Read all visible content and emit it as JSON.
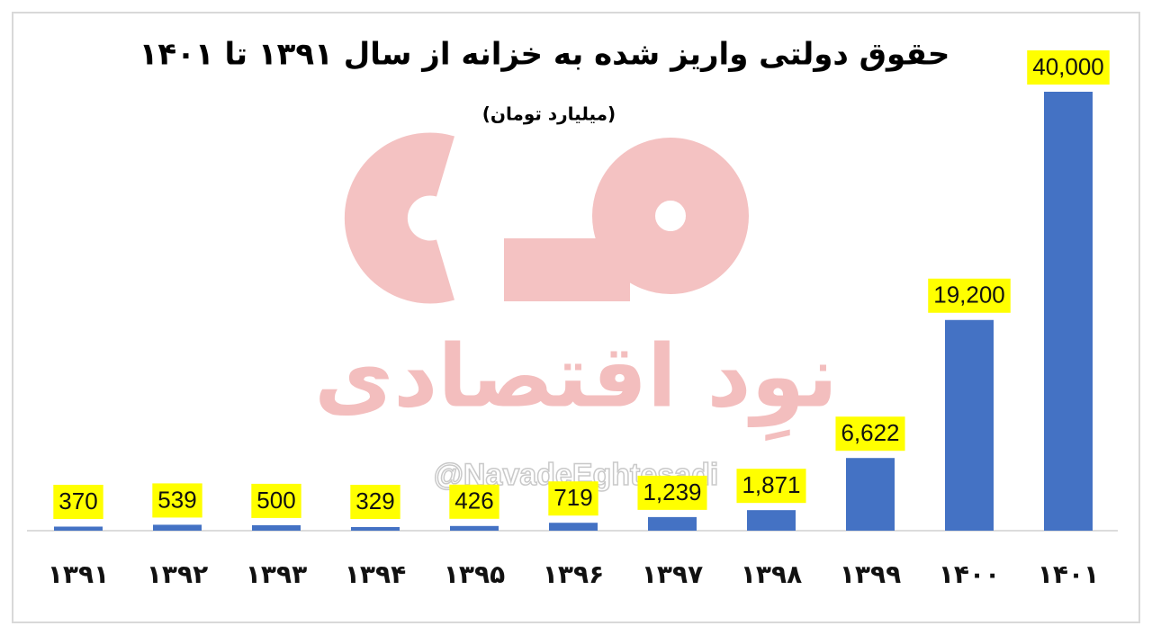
{
  "chart_data": {
    "type": "bar",
    "title": "حقوق دولتی واریز شده به خزانه از سال ۱۳۹۱ تا ۱۴۰۱",
    "subtitle": "(میلیارد تومان)",
    "categories": [
      "۱۳۹۱",
      "۱۳۹۲",
      "۱۳۹۳",
      "۱۳۹۴",
      "۱۳۹۵",
      "۱۳۹۶",
      "۱۳۹۷",
      "۱۳۹۸",
      "۱۳۹۹",
      "۱۴۰۰",
      "۱۴۰۱"
    ],
    "values": [
      370,
      539,
      500,
      329,
      426,
      719,
      1239,
      1871,
      6622,
      19200,
      40000
    ],
    "value_labels": [
      "370",
      "539",
      "500",
      "329",
      "426",
      "719",
      "1,239",
      "1,871",
      "6,622",
      "19,200",
      "40,000"
    ],
    "color": "#4472c4",
    "label_background": "#ffff00",
    "watermark": "نوِد اقتصادی",
    "handle": "@NavadeEghtesadi"
  }
}
